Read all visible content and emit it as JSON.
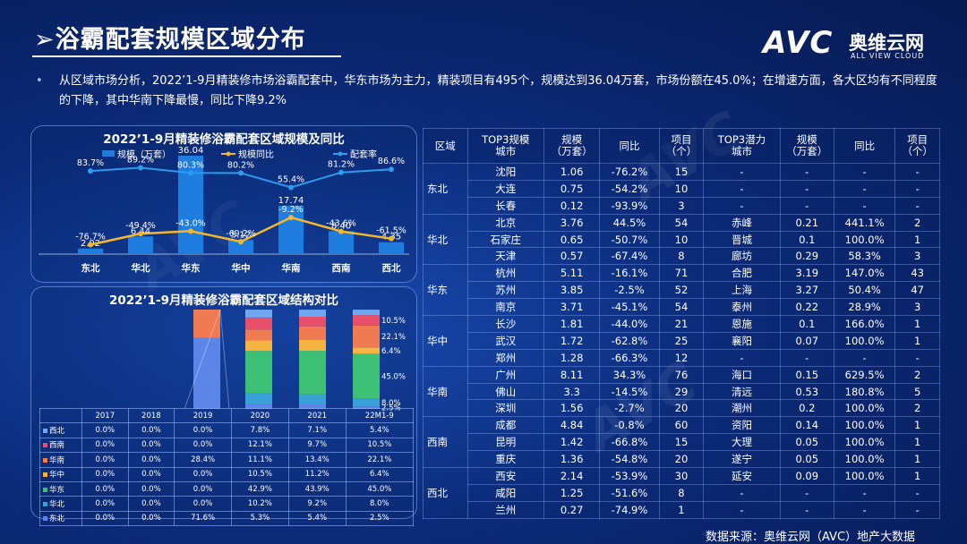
{
  "header": {
    "title": "浴霸配套规模区域分布",
    "logo_main": "AVC",
    "logo_cn": "奥维云网",
    "logo_en": "ALL VIEW CLOUD"
  },
  "summary": "从区域市场分析，2022’1-9月精装修市场浴霸配套中，华东市场为主力，精装项目有495个，规模达到36.04万套，市场份额在45.0%；在增速方面，各大区均有不同程度的下降，其中华南下降最慢，同比下降9.2%",
  "chart_data": [
    {
      "type": "bar",
      "title": "2022’1-9月精装修浴霸配套区域规模及同比",
      "legend": [
        "规模（万套）",
        "规模同比",
        "配套率"
      ],
      "categories": [
        "东北",
        "华北",
        "华东",
        "华中",
        "华南",
        "西南",
        "西北"
      ],
      "series": [
        {
          "name": "规模（万套）",
          "type": "bar",
          "values": [
            2.02,
            6.44,
            36.04,
            5.12,
            17.74,
            8.4,
            4.35
          ],
          "labels": [
            "2.02",
            "6.44",
            "36.04",
            "5.12",
            "17.74",
            "8.40",
            "4.35"
          ]
        },
        {
          "name": "规模同比",
          "type": "line",
          "values": [
            -76.7,
            -49.4,
            -43.0,
            -69.2,
            -9.2,
            -43.6,
            -61.5
          ],
          "labels": [
            "-76.7%",
            "-49.4%",
            "-43.0%",
            "-69.2%",
            "-9.2%",
            "-43.6%",
            "-61.5%"
          ]
        },
        {
          "name": "配套率",
          "type": "line",
          "values": [
            83.7,
            89.2,
            80.3,
            80.2,
            55.4,
            81.2,
            86.6
          ],
          "labels": [
            "83.7%",
            "89.2%",
            "80.3%",
            "80.2%",
            "55.4%",
            "81.2%",
            "86.6%"
          ]
        }
      ],
      "colors": {
        "bar": "#1f7de0",
        "yoy": "#f5b82a",
        "rate": "#2b9cf0"
      }
    },
    {
      "type": "bar",
      "stacked": true,
      "title": "2022’1-9月精装修浴霸配套区域结构对比",
      "categories": [
        "2017",
        "2018",
        "2019",
        "2020",
        "2021",
        "22M1-9"
      ],
      "series": [
        {
          "name": "西北",
          "color": "#6fa8f0",
          "values": [
            0.0,
            0.0,
            0.0,
            7.8,
            7.1,
            5.4
          ]
        },
        {
          "name": "西南",
          "color": "#e84f6a",
          "values": [
            0.0,
            0.0,
            0.0,
            12.1,
            9.7,
            10.5
          ]
        },
        {
          "name": "华南",
          "color": "#f07a52",
          "values": [
            0.0,
            0.0,
            28.4,
            11.1,
            13.4,
            22.1
          ]
        },
        {
          "name": "华中",
          "color": "#f5b340",
          "values": [
            0.0,
            0.0,
            0.0,
            10.5,
            11.2,
            6.4
          ]
        },
        {
          "name": "华东",
          "color": "#3dbf75",
          "values": [
            0.0,
            0.0,
            0.0,
            42.9,
            43.9,
            45.0
          ]
        },
        {
          "name": "华北",
          "color": "#3aa0d8",
          "values": [
            0.0,
            0.0,
            0.0,
            10.2,
            9.2,
            8.0
          ]
        },
        {
          "name": "东北",
          "color": "#5b86e8",
          "values": [
            0.0,
            0.0,
            71.6,
            5.3,
            5.4,
            2.5
          ]
        }
      ],
      "segment_labels_last": [
        "10.5%",
        "22.1%",
        "6.4%",
        "45.0%",
        "8.0%",
        "2.5%"
      ]
    }
  ],
  "struct_table": {
    "headers": [
      "",
      "2017",
      "2018",
      "2019",
      "2020",
      "2021",
      "22M1-9"
    ],
    "rows": [
      {
        "name": "西北",
        "color": "#6fa8f0",
        "cells": [
          "0.0%",
          "0.0%",
          "0.0%",
          "7.8%",
          "7.1%",
          "5.4%"
        ]
      },
      {
        "name": "西南",
        "color": "#e84f6a",
        "cells": [
          "0.0%",
          "0.0%",
          "0.0%",
          "12.1%",
          "9.7%",
          "10.5%"
        ]
      },
      {
        "name": "华南",
        "color": "#f07a52",
        "cells": [
          "0.0%",
          "0.0%",
          "28.4%",
          "11.1%",
          "13.4%",
          "22.1%"
        ]
      },
      {
        "name": "华中",
        "color": "#f5b340",
        "cells": [
          "0.0%",
          "0.0%",
          "0.0%",
          "10.5%",
          "11.2%",
          "6.4%"
        ]
      },
      {
        "name": "华东",
        "color": "#3dbf75",
        "cells": [
          "0.0%",
          "0.0%",
          "0.0%",
          "42.9%",
          "43.9%",
          "45.0%"
        ]
      },
      {
        "name": "华北",
        "color": "#3aa0d8",
        "cells": [
          "0.0%",
          "0.0%",
          "0.0%",
          "10.2%",
          "9.2%",
          "8.0%"
        ]
      },
      {
        "name": "东北",
        "color": "#5b86e8",
        "cells": [
          "0.0%",
          "0.0%",
          "71.6%",
          "5.3%",
          "5.4%",
          "2.5%"
        ]
      }
    ]
  },
  "region_table": {
    "headers": [
      "区域",
      "TOP3规模\n城市",
      "规模\n（万套）",
      "同比",
      "项目\n（个）",
      "TOP3潜力\n城市",
      "规模\n（万套）",
      "同比",
      "项目\n（个）"
    ],
    "regions": [
      {
        "name": "东北",
        "rows": [
          [
            "沈阳",
            "1.06",
            "-76.2%",
            "15",
            "-",
            "-",
            "-",
            "-"
          ],
          [
            "大连",
            "0.75",
            "-54.2%",
            "10",
            "-",
            "-",
            "-",
            "-"
          ],
          [
            "长春",
            "0.12",
            "-93.9%",
            "3",
            "-",
            "-",
            "-",
            "-"
          ]
        ]
      },
      {
        "name": "华北",
        "rows": [
          [
            "北京",
            "3.76",
            "44.5%",
            "54",
            "赤峰",
            "0.21",
            "441.1%",
            "2"
          ],
          [
            "石家庄",
            "0.65",
            "-50.7%",
            "10",
            "晋城",
            "0.1",
            "100.0%",
            "1"
          ],
          [
            "天津",
            "0.57",
            "-67.4%",
            "8",
            "廊坊",
            "0.29",
            "58.3%",
            "3"
          ]
        ]
      },
      {
        "name": "华东",
        "rows": [
          [
            "杭州",
            "5.11",
            "-16.1%",
            "71",
            "合肥",
            "3.19",
            "147.0%",
            "43"
          ],
          [
            "苏州",
            "3.85",
            "-2.5%",
            "52",
            "上海",
            "3.27",
            "50.4%",
            "47"
          ],
          [
            "南京",
            "3.71",
            "-45.1%",
            "54",
            "泰州",
            "0.22",
            "28.9%",
            "3"
          ]
        ]
      },
      {
        "name": "华中",
        "rows": [
          [
            "长沙",
            "1.81",
            "-44.0%",
            "21",
            "恩施",
            "0.1",
            "166.0%",
            "1"
          ],
          [
            "武汉",
            "1.72",
            "-62.8%",
            "25",
            "襄阳",
            "0.07",
            "100.0%",
            "1"
          ],
          [
            "郑州",
            "1.28",
            "-66.3%",
            "12",
            "-",
            "-",
            "-",
            "-"
          ]
        ]
      },
      {
        "name": "华南",
        "rows": [
          [
            "广州",
            "8.11",
            "34.3%",
            "76",
            "海口",
            "0.15",
            "629.5%",
            "2"
          ],
          [
            "佛山",
            "3.3",
            "-14.5%",
            "29",
            "清远",
            "0.53",
            "180.8%",
            "5"
          ],
          [
            "深圳",
            "1.56",
            "-2.7%",
            "20",
            "潮州",
            "0.2",
            "100.0%",
            "2"
          ]
        ]
      },
      {
        "name": "西南",
        "rows": [
          [
            "成都",
            "4.84",
            "-0.8%",
            "60",
            "资阳",
            "0.14",
            "100.0%",
            "1"
          ],
          [
            "昆明",
            "1.42",
            "-66.8%",
            "15",
            "大理",
            "0.05",
            "100.0%",
            "1"
          ],
          [
            "重庆",
            "1.36",
            "-54.8%",
            "20",
            "遂宁",
            "0.05",
            "100.0%",
            "1"
          ]
        ]
      },
      {
        "name": "西北",
        "rows": [
          [
            "西安",
            "2.14",
            "-53.9%",
            "30",
            "延安",
            "0.09",
            "100.0%",
            "1"
          ],
          [
            "咸阳",
            "1.25",
            "-51.6%",
            "8",
            "-",
            "-",
            "-",
            "-"
          ],
          [
            "兰州",
            "0.27",
            "-74.9%",
            "1",
            "-",
            "-",
            "-",
            "-"
          ]
        ]
      }
    ]
  },
  "source": "数据来源：奥维云网（AVC）地产大数据"
}
